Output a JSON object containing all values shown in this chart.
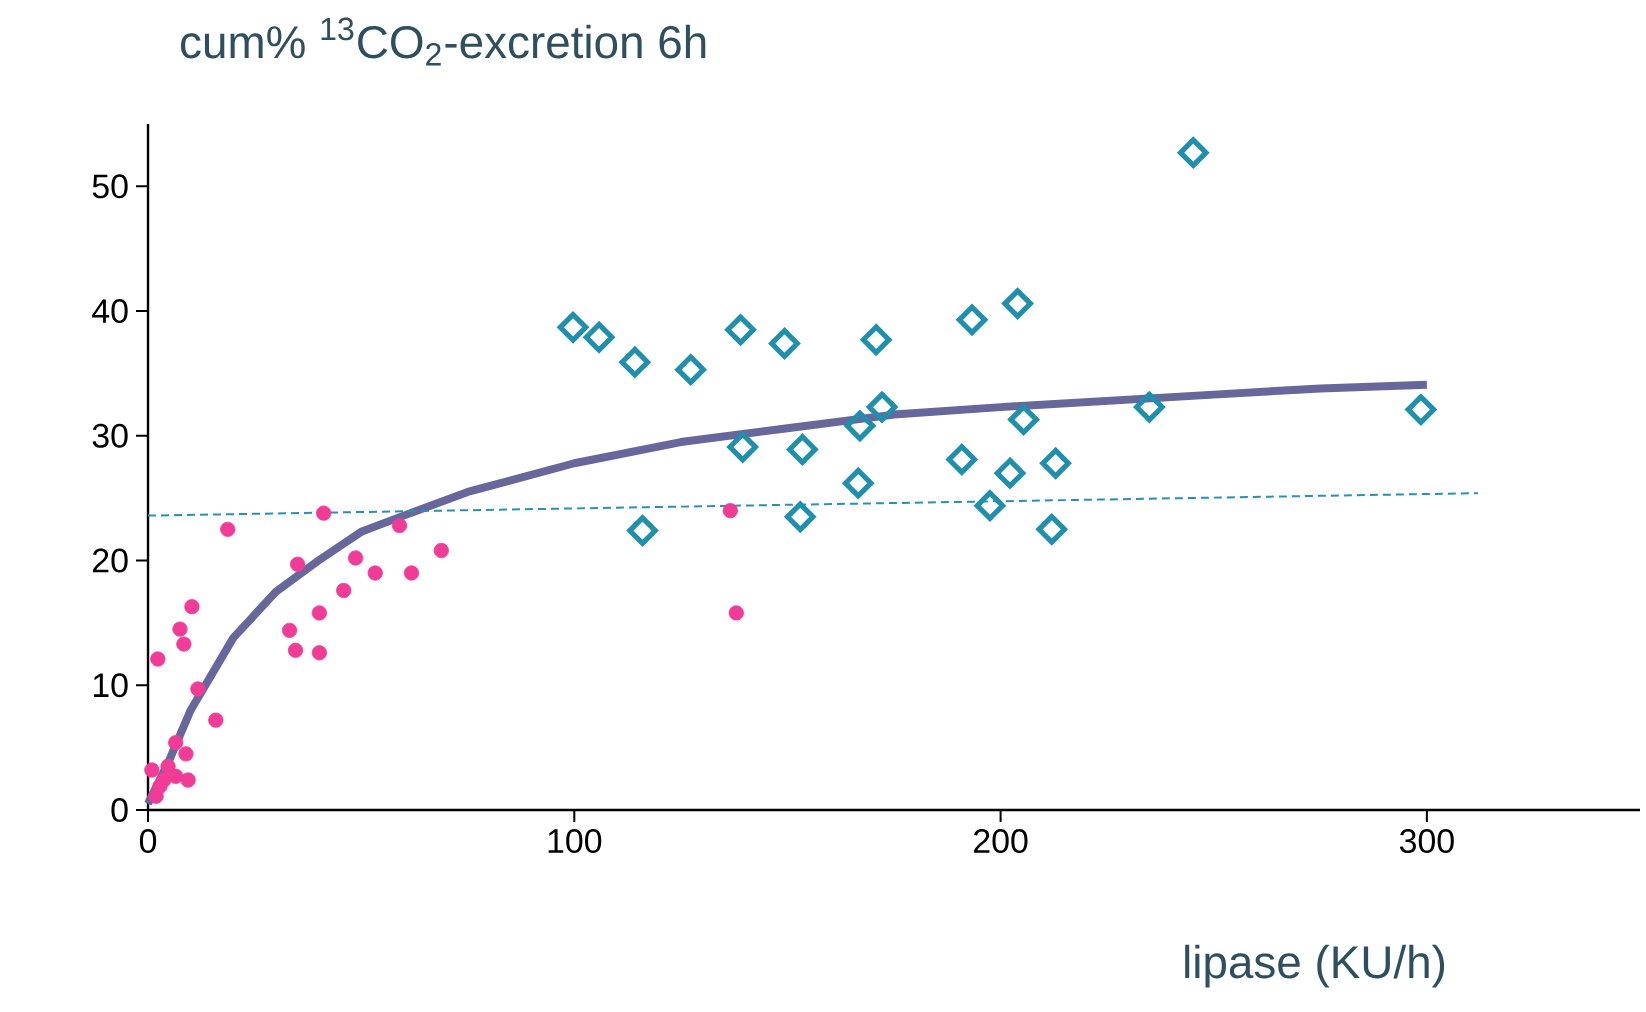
{
  "chart_data": {
    "type": "scatter",
    "title": "cum% $^{13}$CO$_{2}$-excretion 6h",
    "xlabel": "lipase (KU/h)",
    "xlim": [
      0,
      350
    ],
    "xticks": [
      0,
      100,
      200,
      300
    ],
    "ylim": [
      0,
      55
    ],
    "yticks": [
      0,
      10,
      20,
      30,
      40,
      50
    ],
    "grid": false,
    "series": [
      {
        "marker": "circle",
        "color": "#f03c96",
        "x": [
          0.9,
          1.9,
          2.8,
          3.7,
          2.3,
          4.7,
          6.5,
          6.5,
          7.5,
          8.4,
          8.9,
          9.4,
          10.3,
          11.7,
          15.9,
          18.7,
          33.2,
          34.6,
          35.1,
          40.2,
          40.2,
          41.2,
          45.9,
          48.7,
          53.3,
          59.0,
          61.8,
          68.8,
          136.6,
          138.0
        ],
        "values": [
          3.2,
          1.1,
          1.9,
          2.4,
          12.1,
          3.5,
          2.7,
          5.4,
          14.5,
          13.3,
          4.5,
          2.4,
          16.3,
          9.7,
          7.2,
          22.5,
          14.4,
          12.8,
          19.7,
          12.6,
          15.8,
          23.8,
          17.6,
          20.2,
          19.0,
          22.8,
          19.0,
          20.8,
          24.0,
          15.8
        ]
      },
      {
        "marker": "diamond",
        "color": "#1f8fae",
        "x": [
          99.7,
          105.8,
          114.2,
          127.3,
          139.0,
          149.3,
          170.8,
          193.3,
          204.0,
          245.2,
          116.0,
          139.5,
          153.5,
          153.0,
          166.6,
          167.0,
          172.2,
          190.9,
          197.5,
          202.2,
          205.4,
          212.0,
          212.9,
          234.9,
          298.6
        ],
        "values": [
          38.7,
          37.9,
          35.9,
          35.3,
          38.5,
          37.4,
          37.7,
          39.3,
          40.6,
          52.7,
          22.4,
          29.1,
          28.9,
          23.5,
          26.2,
          30.8,
          32.3,
          28.1,
          24.4,
          27.0,
          31.3,
          22.5,
          27.8,
          32.3,
          32.1
        ]
      },
      {
        "type": "line",
        "marker": "none",
        "line_style": "solid",
        "color": "#67679b",
        "x": [
          0,
          5,
          10,
          20,
          30,
          40,
          50,
          60,
          75,
          100,
          125,
          150,
          175,
          200,
          225,
          250,
          275,
          300
        ],
        "values": [
          0.5,
          4,
          8,
          13.8,
          17.5,
          20,
          22.3,
          23.6,
          25.5,
          27.8,
          29.5,
          30.6,
          31.7,
          32.3,
          32.8,
          33.3,
          33.8,
          34.1
        ]
      },
      {
        "type": "line",
        "marker": "none",
        "line_style": "dashed",
        "color": "#2a8fb0",
        "x": [
          0,
          312
        ],
        "values": [
          23.6,
          25.4
        ]
      }
    ]
  }
}
